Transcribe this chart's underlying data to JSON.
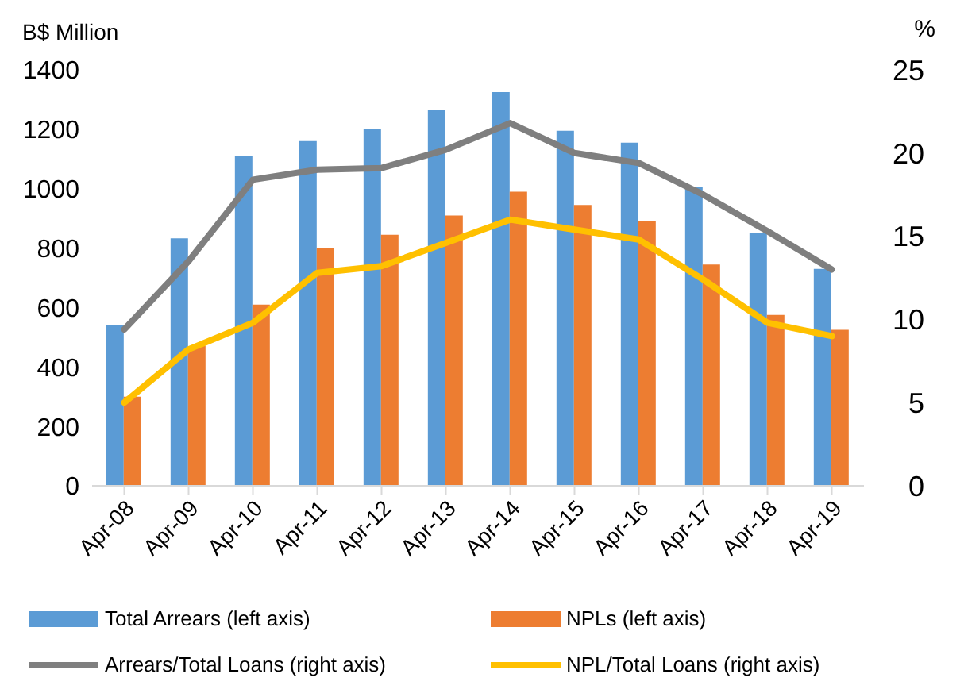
{
  "chart_data": {
    "type": "bar",
    "ylabel": "B$ Million",
    "y2label": "%",
    "categories": [
      "Apr-08",
      "Apr-09",
      "Apr-10",
      "Apr-11",
      "Apr-12",
      "Apr-13",
      "Apr-14",
      "Apr-15",
      "Apr-16",
      "Apr-17",
      "Apr-18",
      "Apr-19"
    ],
    "series": [
      {
        "name": "Total Arrears (left axis)",
        "color": "#5b9bd5",
        "values": [
          540,
          833,
          1110,
          1160,
          1200,
          1265,
          1325,
          1195,
          1155,
          1005,
          850,
          730
        ]
      },
      {
        "name": "NPLs (left axis)",
        "color": "#ed7d31",
        "values": [
          300,
          470,
          610,
          800,
          845,
          910,
          990,
          945,
          890,
          745,
          575,
          525
        ]
      },
      {
        "name": "Arrears/Total Loans (right axis)",
        "type": "line",
        "axis": "y2",
        "color": "#7f7f7f",
        "values": [
          9.4,
          13.5,
          18.4,
          19.0,
          19.1,
          20.2,
          21.8,
          20.0,
          19.4,
          17.5,
          15.3,
          13.0
        ]
      },
      {
        "name": "NPL/Total Loans (right axis)",
        "type": "line",
        "axis": "y2",
        "color": "#ffc000",
        "values": [
          5.0,
          8.2,
          9.8,
          12.8,
          13.2,
          14.6,
          16.0,
          15.4,
          14.8,
          12.4,
          9.8,
          9.0
        ]
      }
    ],
    "ylim": [
      0,
      1400
    ],
    "yticks": [
      0,
      200,
      400,
      600,
      800,
      1000,
      1200,
      1400
    ],
    "y2lim": [
      0,
      25
    ],
    "y2ticks": [
      0,
      5,
      10,
      15,
      20,
      25
    ],
    "grid": false,
    "legend": "bottom",
    "marker": "none",
    "line_style": "solid"
  }
}
